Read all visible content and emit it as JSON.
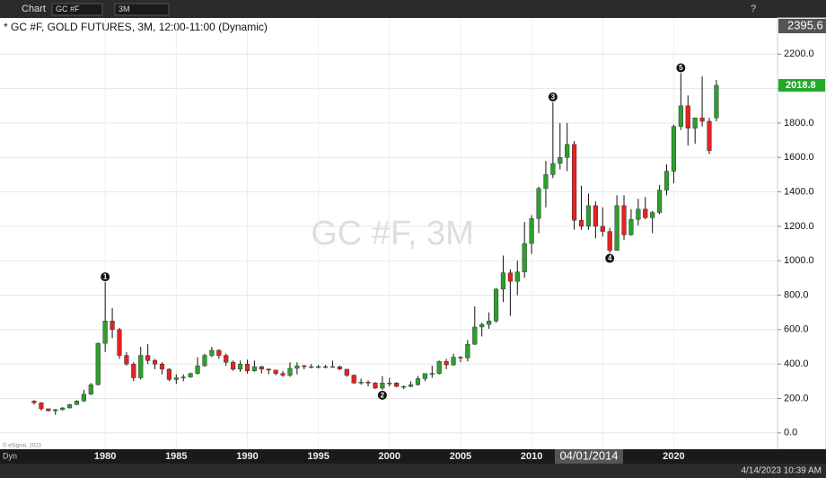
{
  "ui": {
    "app_name": "Chart",
    "symbol_box": "GC #F",
    "interval_box": "3M",
    "help": "?",
    "mode": "Dyn",
    "timestamp": "4/14/2023 10:39 AM",
    "copyright": "© eSignal, 2023"
  },
  "chart_data": {
    "type": "candlestick",
    "title": "* GC #F, GOLD FUTURES, 3M, 12:00-11:00 (Dynamic)",
    "watermark": "GC #F, 3M",
    "x": [
      1975,
      1975.5,
      1976,
      1976.5,
      1977,
      1977.5,
      1978,
      1978.5,
      1979,
      1979.5,
      1980,
      1980.5,
      1981,
      1981.5,
      1982,
      1982.5,
      1983,
      1983.5,
      1984,
      1984.5,
      1985,
      1985.5,
      1986,
      1986.5,
      1987,
      1987.5,
      1988,
      1988.5,
      1989,
      1989.5,
      1990,
      1990.5,
      1991,
      1991.5,
      1992,
      1992.5,
      1993,
      1993.5,
      1994,
      1994.5,
      1995,
      1995.5,
      1996,
      1996.5,
      1997,
      1997.5,
      1998,
      1998.5,
      1999,
      1999.5,
      2000,
      2000.5,
      2001,
      2001.5,
      2002,
      2002.5,
      2003,
      2003.5,
      2004,
      2004.5,
      2005,
      2005.5,
      2006,
      2006.5,
      2007,
      2007.5,
      2008,
      2008.5,
      2009,
      2009.5,
      2010,
      2010.5,
      2011,
      2011.5,
      2012,
      2012.5,
      2013,
      2013.5,
      2014,
      2014.5,
      2015,
      2015.5,
      2016,
      2016.5,
      2017,
      2017.5,
      2018,
      2018.5,
      2019,
      2019.5,
      2020,
      2020.5,
      2021,
      2021.5,
      2022,
      2022.5,
      2023
    ],
    "open": [
      185,
      175,
      140,
      128,
      135,
      145,
      165,
      185,
      225,
      280,
      520,
      650,
      600,
      450,
      400,
      320,
      450,
      420,
      400,
      370,
      310,
      320,
      325,
      345,
      390,
      450,
      480,
      450,
      410,
      370,
      400,
      360,
      385,
      370,
      365,
      345,
      335,
      375,
      390,
      385,
      385,
      385,
      385,
      385,
      370,
      335,
      290,
      295,
      290,
      260,
      290,
      290,
      270,
      270,
      280,
      315,
      345,
      345,
      415,
      395,
      440,
      435,
      515,
      615,
      630,
      650,
      835,
      930,
      880,
      935,
      1100,
      1245,
      1420,
      1500,
      1565,
      1600,
      1675,
      1235,
      1200,
      1320,
      1200,
      1170,
      1060,
      1320,
      1150,
      1240,
      1300,
      1250,
      1280,
      1410,
      1520,
      1780,
      1900,
      1770,
      1830,
      1810,
      1830
    ],
    "high": [
      190,
      178,
      142,
      140,
      150,
      168,
      190,
      250,
      290,
      525,
      875,
      725,
      610,
      470,
      410,
      500,
      515,
      430,
      410,
      375,
      340,
      340,
      350,
      440,
      460,
      500,
      485,
      460,
      420,
      420,
      425,
      420,
      390,
      375,
      365,
      360,
      410,
      410,
      395,
      400,
      395,
      395,
      420,
      390,
      370,
      340,
      315,
      305,
      295,
      330,
      320,
      295,
      275,
      300,
      330,
      330,
      390,
      420,
      430,
      460,
      445,
      540,
      735,
      640,
      700,
      840,
      1030,
      950,
      1000,
      1225,
      1265,
      1430,
      1580,
      1920,
      1800,
      1800,
      1695,
      1435,
      1390,
      1345,
      1310,
      1190,
      1380,
      1380,
      1300,
      1360,
      1370,
      1290,
      1440,
      1560,
      1790,
      2089,
      1960,
      1830,
      2070,
      1830,
      2050
    ],
    "low": [
      165,
      130,
      125,
      105,
      130,
      142,
      162,
      180,
      220,
      275,
      470,
      550,
      430,
      390,
      300,
      310,
      400,
      370,
      340,
      300,
      285,
      300,
      320,
      340,
      385,
      440,
      430,
      390,
      360,
      355,
      345,
      355,
      345,
      340,
      335,
      325,
      325,
      340,
      370,
      375,
      375,
      375,
      380,
      365,
      325,
      285,
      280,
      270,
      255,
      250,
      270,
      265,
      255,
      265,
      275,
      300,
      320,
      340,
      370,
      390,
      410,
      415,
      510,
      560,
      605,
      640,
      760,
      680,
      800,
      900,
      1040,
      1160,
      1310,
      1480,
      1530,
      1520,
      1180,
      1180,
      1180,
      1130,
      1140,
      1045,
      1060,
      1120,
      1145,
      1205,
      1240,
      1160,
      1270,
      1380,
      1450,
      1760,
      1670,
      1680,
      1780,
      1620,
      1810
    ],
    "close": [
      175,
      140,
      128,
      135,
      145,
      165,
      185,
      225,
      280,
      520,
      650,
      600,
      450,
      400,
      320,
      450,
      420,
      400,
      370,
      310,
      320,
      325,
      345,
      390,
      450,
      480,
      450,
      410,
      370,
      400,
      360,
      385,
      370,
      365,
      345,
      335,
      375,
      390,
      385,
      385,
      385,
      385,
      385,
      370,
      335,
      290,
      295,
      290,
      260,
      290,
      290,
      270,
      270,
      280,
      315,
      345,
      345,
      415,
      395,
      440,
      435,
      515,
      615,
      630,
      650,
      835,
      930,
      880,
      935,
      1100,
      1245,
      1420,
      1500,
      1565,
      1600,
      1675,
      1235,
      1200,
      1320,
      1200,
      1170,
      1060,
      1320,
      1150,
      1240,
      1300,
      1250,
      1280,
      1410,
      1520,
      1780,
      1900,
      1770,
      1830,
      1810,
      1640,
      2018.8
    ],
    "up_color": "#2e9e2e",
    "down_color": "#e02424",
    "wick_color": "#111111",
    "last_price_label": "2018.8",
    "last_price_color": "#22a82a",
    "cursor_price_label": "2395.6",
    "cursor_date_label": "04/01/2014",
    "annotations": [
      {
        "label": "1",
        "x": 1980,
        "value": 875
      },
      {
        "label": "2",
        "x": 1999.5,
        "value": 250
      },
      {
        "label": "3",
        "x": 2011.5,
        "value": 1920
      },
      {
        "label": "4",
        "x": 2015.5,
        "value": 1045
      },
      {
        "label": "5",
        "x": 2020.5,
        "value": 2089
      }
    ],
    "xlim": [
      1972.6,
      2027.3
    ],
    "xticks": [
      1980,
      1985,
      1990,
      1995,
      2000,
      2005,
      2010,
      2015,
      2020
    ],
    "ylim": [
      -95,
      2410
    ],
    "yticks": [
      {
        "value": 0,
        "label": "0.0"
      },
      {
        "value": 200,
        "label": "200.0"
      },
      {
        "value": 400,
        "label": "400.0"
      },
      {
        "value": 600,
        "label": "600.0"
      },
      {
        "value": 800,
        "label": "800.0"
      },
      {
        "value": 1000,
        "label": "1000.0"
      },
      {
        "value": 1200,
        "label": "1200.0"
      },
      {
        "value": 1400,
        "label": "1400.0"
      },
      {
        "value": 1600,
        "label": "1600.0"
      },
      {
        "value": 1800,
        "label": "1800.0"
      },
      {
        "value": 2000,
        "label": "2000.0"
      },
      {
        "value": 2200,
        "label": "2200.0"
      }
    ],
    "grid": true
  }
}
